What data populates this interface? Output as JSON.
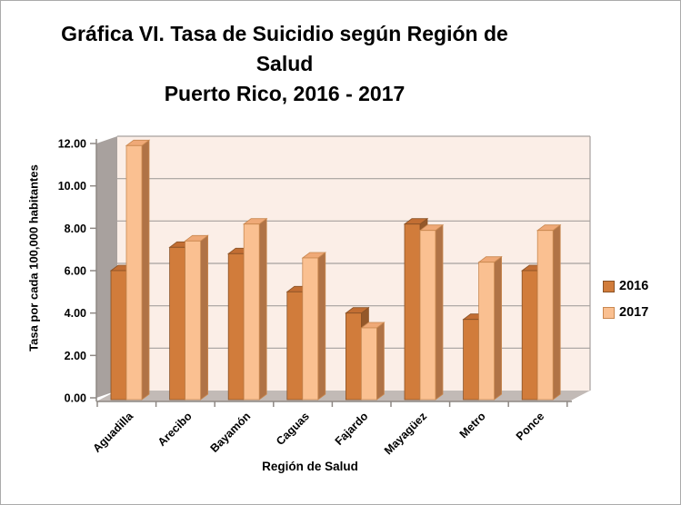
{
  "page": {
    "title_lines": [
      "Gráfica VI. Tasa de Suicidio según Región de",
      "Salud",
      "Puerto Rico, 2016 - 2017"
    ]
  },
  "chart_data": {
    "type": "bar",
    "style": "3d-column",
    "title": "Gráfica VI. Tasa de Suicidio según Región de Salud Puerto Rico, 2016 - 2017",
    "categories": [
      "Aguadilla",
      "Arecibo",
      "Bayamón",
      "Caguas",
      "Fajardo",
      "Mayagüez",
      "Metro",
      "Ponce"
    ],
    "series": [
      {
        "name": "2016",
        "values": [
          6.0,
          7.1,
          6.8,
          5.0,
          4.0,
          8.2,
          3.7,
          6.0
        ],
        "color": "#D17C3B",
        "color_top": "#C26E33",
        "color_side": "#94582A",
        "color_border": "#8A5226"
      },
      {
        "name": "2017",
        "values": [
          11.9,
          7.4,
          8.2,
          6.6,
          3.3,
          7.9,
          6.4,
          7.9
        ],
        "color": "#FAC091",
        "color_top": "#EFA977",
        "color_side": "#B07346",
        "color_border": "#C98850"
      }
    ],
    "xlabel": "Región de Salud",
    "ylabel": "Tasa por cada 100,000 habitantes",
    "ylim": [
      0,
      12
    ],
    "ytick_step": 2,
    "ytick_labels": [
      "0.00",
      "2.00",
      "4.00",
      "6.00",
      "8.00",
      "10.00",
      "12.00"
    ],
    "grid": true,
    "legend_position": "right",
    "colors": {
      "plot_bg": "#FBEEE7",
      "wall": "#A8A19E",
      "floor": "#C2BAB6",
      "gridline": "#A6A19E",
      "axis": "#8E8884",
      "text": "#000000",
      "frame_border": "#ABABAB"
    }
  }
}
